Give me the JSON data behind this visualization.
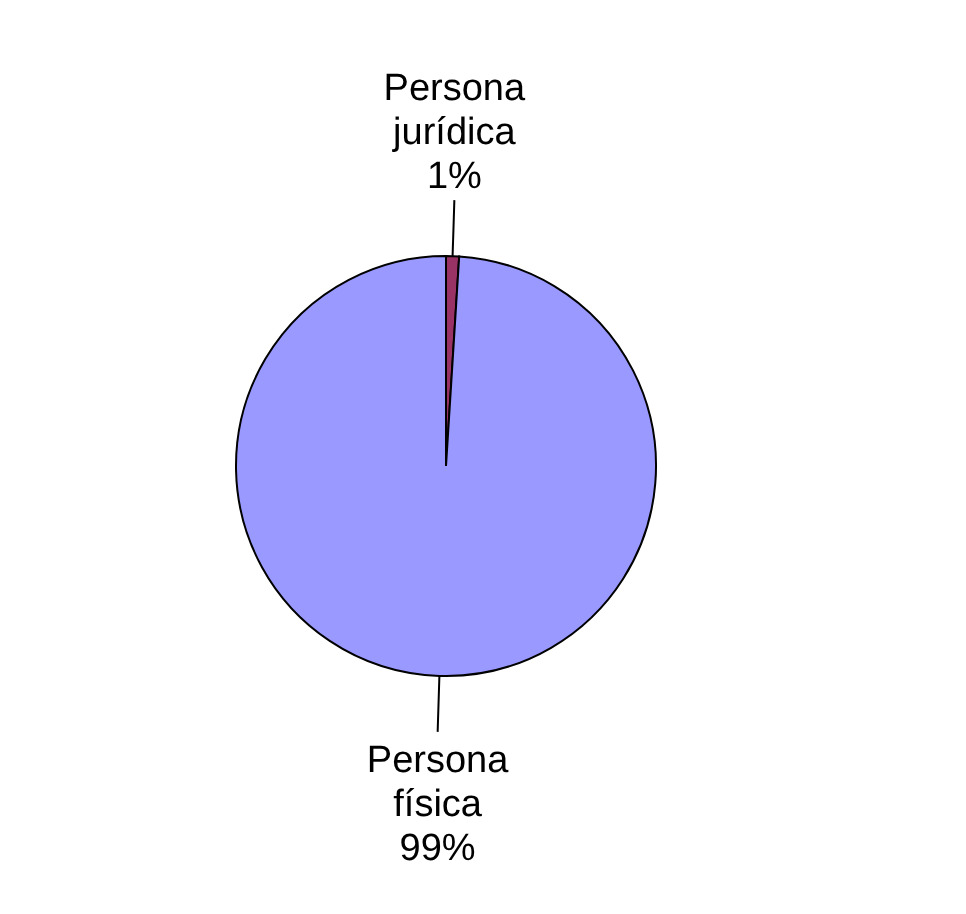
{
  "chart_data": {
    "type": "pie",
    "categories": [
      "Persona jurídica",
      "Persona física"
    ],
    "values": [
      1,
      99
    ],
    "colors": [
      "#993366",
      "#9999ff"
    ],
    "value_labels": [
      "1%",
      "99%"
    ]
  }
}
